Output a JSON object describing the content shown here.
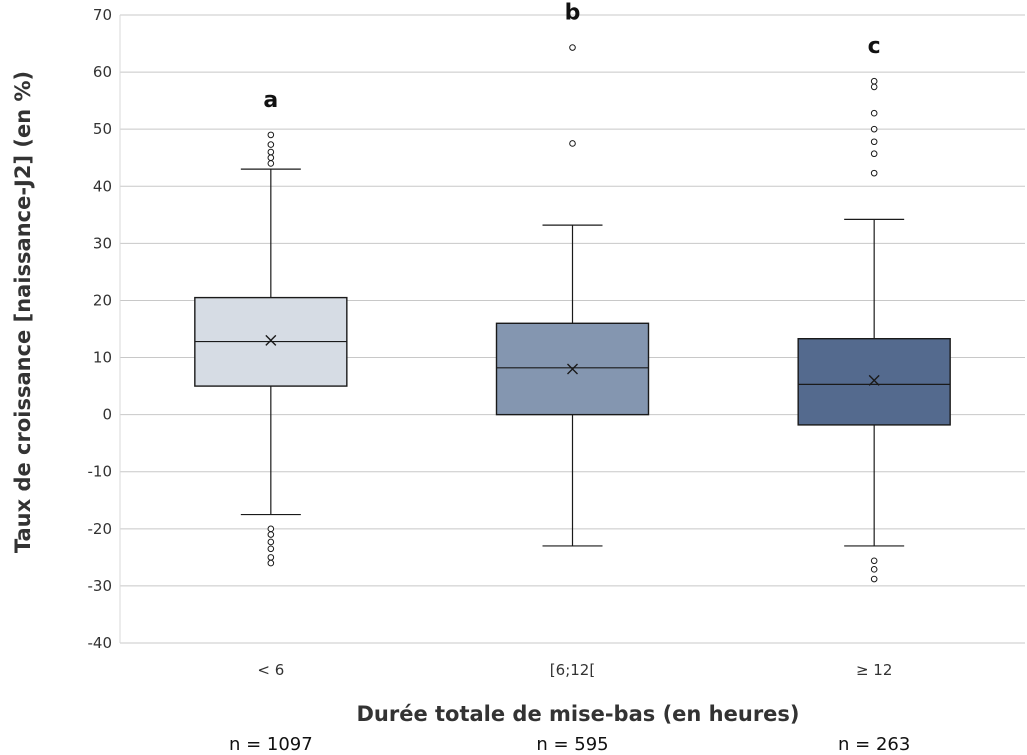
{
  "chart_data": {
    "type": "box",
    "xlabel": "Durée totale de mise-bas (en heures)",
    "ylabel": "Taux de croissance [naissance-J2] (en %)",
    "ylim": [
      -40,
      70
    ],
    "yticks": [
      70,
      60,
      50,
      40,
      30,
      20,
      10,
      0,
      -10,
      -20,
      -30,
      -40
    ],
    "ytick_labels": [
      "70",
      "60",
      "50",
      "40",
      "30",
      "20",
      "10",
      "0",
      "-10",
      "-20",
      "-30",
      "-40"
    ],
    "grid": "horizontal",
    "categories": [
      "< 6",
      "[6;12[",
      "≥ 12"
    ],
    "groups": [
      {
        "category": "< 6",
        "letter": "a",
        "n_label": "n = 1097",
        "color": "#d6dce4",
        "whisker_low": -17.5,
        "q1": 5,
        "median": 12.8,
        "q3": 20.5,
        "whisker_high": 43,
        "mean": 13,
        "outliers": [
          44,
          45,
          46,
          47.3,
          49,
          -20,
          -21,
          -22.3,
          -23.5,
          -25,
          -26
        ]
      },
      {
        "category": "[6;12[",
        "letter": "b",
        "n_label": "n = 595",
        "color": "#8496b0",
        "whisker_low": -23,
        "q1": 0,
        "median": 8.2,
        "q3": 16,
        "whisker_high": 33.2,
        "mean": 8,
        "outliers": [
          47.5,
          64.3
        ]
      },
      {
        "category": "≥ 12",
        "letter": "c",
        "n_label": "n = 263",
        "color": "#546a8e",
        "whisker_low": -23,
        "q1": -1.8,
        "median": 5.3,
        "q3": 13.3,
        "whisker_high": 34.2,
        "mean": 6,
        "outliers": [
          42.3,
          45.7,
          47.8,
          50,
          52.8,
          57.4,
          58.4,
          -25.6,
          -27.1,
          -28.8
        ]
      }
    ]
  }
}
